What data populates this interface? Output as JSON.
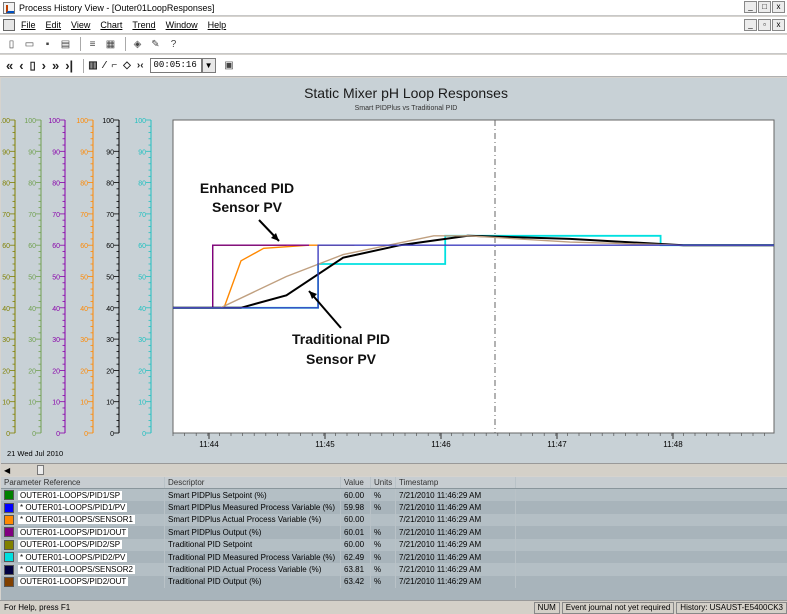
{
  "window": {
    "title": "Process History View - [Outer01LoopResponses]"
  },
  "menu": [
    "File",
    "Edit",
    "View",
    "Chart",
    "Trend",
    "Window",
    "Help"
  ],
  "toolbar": {
    "time_value": "00:05:16"
  },
  "chart": {
    "title": "Static Mixer pH Loop Responses",
    "subtitle": "Smart PIDPlus vs Traditional PID",
    "date_label": "21 Wed Jul 2010",
    "annotation_enhanced_1": "Enhanced PID",
    "annotation_enhanced_2": "Sensor PV",
    "annotation_traditional_1": "Traditional PID",
    "annotation_traditional_2": "Sensor PV",
    "axis_colors": [
      "#808000",
      "#70a050",
      "#8800aa",
      "#ff8800",
      "#000000",
      "#20c0c0"
    ],
    "y_ticks": [
      "100",
      "90",
      "80",
      "70",
      "60",
      "50",
      "40",
      "30",
      "20",
      "10",
      "0"
    ],
    "x_ticks": [
      "11:44",
      "11:45",
      "11:46",
      "11:47",
      "11:48"
    ]
  },
  "chart_data": {
    "type": "line",
    "title": "Static Mixer pH Loop Responses",
    "subtitle": "Smart PIDPlus vs Traditional PID",
    "xlabel": "",
    "ylabel": "",
    "ylim": [
      0,
      100
    ],
    "x_ticks": [
      "11:44",
      "11:45",
      "11:46",
      "11:47",
      "11:48"
    ],
    "series": [
      {
        "name": "OUTER01-LOOPS/PID1/SP",
        "color": "#808000",
        "x": [
          0,
          0.35,
          0.35,
          1
        ],
        "y": [
          40,
          40,
          60,
          60
        ]
      },
      {
        "name": "OUTER01-LOOPS/PID1/PV",
        "color": "#ff8800",
        "x": [
          0,
          0.45,
          0.6,
          0.8,
          1.2,
          1.6
        ],
        "y": [
          40,
          40,
          55,
          59,
          60,
          60
        ]
      },
      {
        "name": "OUTER01-LOOPS/PID1/OUT",
        "color": "#800080",
        "x": [
          0,
          0.35,
          0.35,
          1.2
        ],
        "y": [
          40,
          40,
          60,
          60
        ]
      },
      {
        "name": "OUTER01-LOOPS/PID2/PV",
        "color": "#00e0e0",
        "x": [
          0,
          1.28,
          1.28,
          2.4,
          2.4,
          4.3,
          4.3,
          5.3
        ],
        "y": [
          40,
          40,
          54,
          54,
          63,
          63,
          60,
          60
        ]
      },
      {
        "name": "OUTER01-LOOPS/SENSOR2",
        "color": "#000000",
        "x": [
          0,
          0.6,
          1.0,
          1.5,
          2.0,
          2.6,
          3.5,
          4.5,
          5.3
        ],
        "y": [
          40,
          40,
          44,
          56,
          60,
          63,
          62,
          60,
          60
        ]
      },
      {
        "name": "OUTER01-LOOPS/PID2/OUT",
        "color": "#c0a080",
        "x": [
          0,
          0.42,
          1.0,
          1.5,
          2.3,
          2.6,
          3.5,
          4.5,
          5.3
        ],
        "y": [
          40,
          40,
          50,
          57,
          63,
          63,
          61,
          60,
          60
        ]
      },
      {
        "name": "OUTER01-LOOPS/PID2/SP",
        "color": "#4040c0",
        "x": [
          0,
          1.28,
          1.28,
          5.3
        ],
        "y": [
          40,
          40,
          60,
          60
        ]
      }
    ]
  },
  "table": {
    "headers": [
      "Parameter Reference",
      "Descriptor",
      "Value",
      "Units",
      "Timestamp"
    ],
    "rows": [
      {
        "color": "#008000",
        "ref": "OUTER01-LOOPS/PID1/SP",
        "desc": "Smart PIDPlus Setpoint (%)",
        "value": "60.00",
        "units": "%",
        "time": "7/21/2010 11:46:29 AM"
      },
      {
        "color": "#0000ff",
        "ref": "* OUTER01-LOOPS/PID1/PV",
        "desc": "Smart PIDPlus Measured Process Variable (%)",
        "value": "59.98",
        "units": "%",
        "time": "7/21/2010 11:46:29 AM"
      },
      {
        "color": "#ff8800",
        "ref": "* OUTER01-LOOPS/SENSOR1",
        "desc": "Smart PIDPlus Actual Process Variable (%)",
        "value": "60.00",
        "units": "",
        "time": "7/21/2010 11:46:29 AM"
      },
      {
        "color": "#800080",
        "ref": "OUTER01-LOOPS/PID1/OUT",
        "desc": "Smart PIDPlus Output (%)",
        "value": "60.01",
        "units": "%",
        "time": "7/21/2010 11:46:29 AM"
      },
      {
        "color": "#808000",
        "ref": "OUTER01-LOOPS/PID2/SP",
        "desc": "Traditional PID Setpoint",
        "value": "60.00",
        "units": "%",
        "time": "7/21/2010 11:46:29 AM"
      },
      {
        "color": "#00e0e0",
        "ref": "* OUTER01-LOOPS/PID2/PV",
        "desc": "Traditional PID Measured Process Variable (%)",
        "value": "62.49",
        "units": "%",
        "time": "7/21/2010 11:46:29 AM"
      },
      {
        "color": "#000040",
        "ref": "* OUTER01-LOOPS/SENSOR2",
        "desc": "Traditional PID Actual Process Variable (%)",
        "value": "63.81",
        "units": "%",
        "time": "7/21/2010 11:46:29 AM"
      },
      {
        "color": "#804000",
        "ref": "OUTER01-LOOPS/PID2/OUT",
        "desc": "Traditional PID Output (%)",
        "value": "63.42",
        "units": "%",
        "time": "7/21/2010 11:46:29 AM"
      }
    ]
  },
  "status": {
    "help": "For Help, press F1",
    "num": "NUM",
    "journal": "Event journal not yet required",
    "history": "History: USAUST-E5400CK3"
  }
}
